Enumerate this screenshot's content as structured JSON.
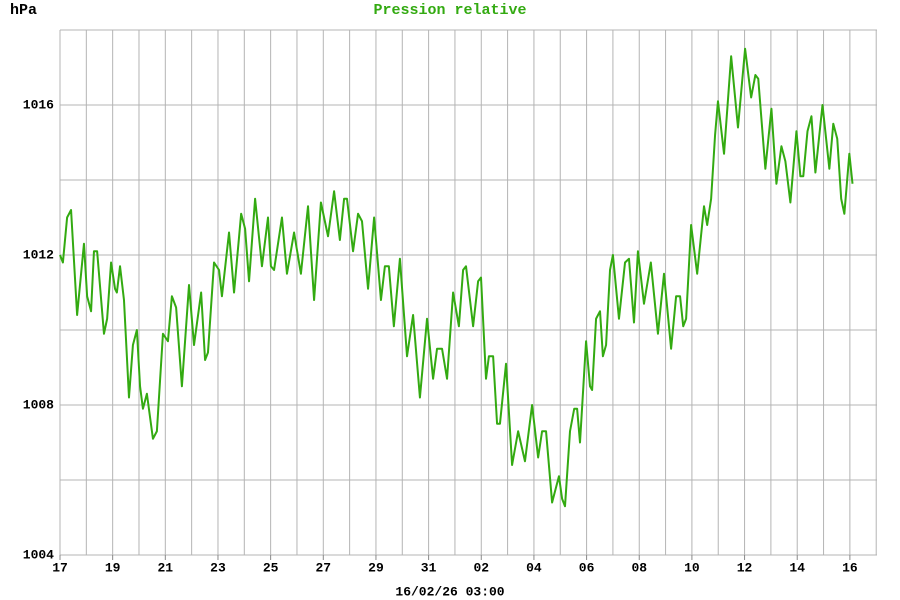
{
  "chart_data": {
    "type": "line",
    "title": "Pression relative",
    "y_label": "hPa",
    "x_label": "16/02/26 03:00",
    "color": "#33aa11",
    "ylim": [
      1004,
      1018
    ],
    "yticks": [
      1004,
      1008,
      1012,
      1016
    ],
    "ygrid": [
      1004,
      1006,
      1008,
      1010,
      1012,
      1014,
      1016,
      1018
    ],
    "xlim": [
      0,
      31.03
    ],
    "xticks": [
      {
        "value": 0,
        "label": "17"
      },
      {
        "value": 2,
        "label": "19"
      },
      {
        "value": 4,
        "label": "21"
      },
      {
        "value": 6,
        "label": "23"
      },
      {
        "value": 8,
        "label": "25"
      },
      {
        "value": 10,
        "label": "27"
      },
      {
        "value": 12,
        "label": "29"
      },
      {
        "value": 14,
        "label": "31"
      },
      {
        "value": 16,
        "label": "02"
      },
      {
        "value": 18,
        "label": "04"
      },
      {
        "value": 20,
        "label": "06"
      },
      {
        "value": 22,
        "label": "08"
      },
      {
        "value": 24,
        "label": "10"
      },
      {
        "value": 26,
        "label": "12"
      },
      {
        "value": 28,
        "label": "14"
      },
      {
        "value": 30,
        "label": "16"
      }
    ],
    "xgrid": [
      0,
      1,
      2,
      3,
      4,
      5,
      6,
      7,
      8,
      9,
      10,
      11,
      12,
      13,
      14,
      15,
      16,
      17,
      18,
      19,
      20,
      21,
      22,
      23,
      24,
      25,
      26,
      27,
      28,
      29,
      30,
      31
    ],
    "grid": true,
    "x": [
      0,
      0.11,
      0.27,
      0.42,
      0.65,
      0.91,
      1.03,
      1.18,
      1.29,
      1.41,
      1.67,
      1.79,
      1.94,
      2.09,
      2.16,
      2.28,
      2.43,
      2.62,
      2.77,
      2.92,
      3.04,
      3.15,
      3.3,
      3.53,
      3.68,
      3.91,
      4.1,
      4.25,
      4.41,
      4.63,
      4.9,
      5.09,
      5.36,
      5.51,
      5.62,
      5.85,
      6.04,
      6.15,
      6.42,
      6.61,
      6.88,
      7.03,
      7.18,
      7.41,
      7.67,
      7.9,
      8.01,
      8.13,
      8.43,
      8.62,
      8.89,
      9.15,
      9.42,
      9.65,
      9.91,
      10.18,
      10.41,
      10.63,
      10.79,
      10.9,
      11.13,
      11.32,
      11.47,
      11.7,
      11.93,
      12.19,
      12.34,
      12.49,
      12.68,
      12.91,
      13.18,
      13.41,
      13.67,
      13.94,
      14.17,
      14.32,
      14.51,
      14.7,
      14.93,
      15.15,
      15.31,
      15.42,
      15.69,
      15.88,
      15.99,
      16.18,
      16.29,
      16.45,
      16.6,
      16.71,
      16.94,
      17.17,
      17.4,
      17.66,
      17.93,
      18.16,
      18.31,
      18.46,
      18.69,
      18.95,
      19.07,
      19.18,
      19.37,
      19.53,
      19.64,
      19.75,
      19.98,
      20.13,
      20.21,
      20.36,
      20.51,
      20.62,
      20.74,
      20.89,
      21.0,
      21.23,
      21.46,
      21.61,
      21.8,
      21.95,
      22.18,
      22.44,
      22.71,
      22.94,
      23.21,
      23.4,
      23.55,
      23.67,
      23.78,
      23.97,
      24.2,
      24.46,
      24.58,
      24.73,
      24.88,
      24.99,
      25.22,
      25.49,
      25.75,
      26.02,
      26.25,
      26.41,
      26.52,
      26.79,
      27.02,
      27.21,
      27.4,
      27.55,
      27.74,
      27.97,
      28.12,
      28.23,
      28.39,
      28.54,
      28.69,
      28.96,
      29.22,
      29.37,
      29.52,
      29.67,
      29.79,
      29.98,
      30.1
    ],
    "values": [
      1012.0,
      1011.8,
      1013.0,
      1013.2,
      1010.4,
      1012.3,
      1010.9,
      1010.5,
      1012.1,
      1012.1,
      1009.9,
      1010.3,
      1011.8,
      1011.1,
      1011.0,
      1011.7,
      1010.8,
      1008.2,
      1009.6,
      1010.0,
      1008.5,
      1007.9,
      1008.3,
      1007.1,
      1007.3,
      1009.9,
      1009.7,
      1010.9,
      1010.6,
      1008.5,
      1011.2,
      1009.6,
      1011.0,
      1009.2,
      1009.4,
      1011.8,
      1011.6,
      1010.9,
      1012.6,
      1011.0,
      1013.1,
      1012.7,
      1011.3,
      1013.5,
      1011.7,
      1013.0,
      1011.7,
      1011.6,
      1013.0,
      1011.5,
      1012.6,
      1011.5,
      1013.3,
      1010.8,
      1013.4,
      1012.5,
      1013.7,
      1012.4,
      1013.5,
      1013.5,
      1012.1,
      1013.1,
      1012.9,
      1011.1,
      1013.0,
      1010.8,
      1011.7,
      1011.7,
      1010.1,
      1011.9,
      1009.3,
      1010.4,
      1008.2,
      1010.3,
      1008.7,
      1009.5,
      1009.5,
      1008.7,
      1011.0,
      1010.1,
      1011.6,
      1011.7,
      1010.1,
      1011.3,
      1011.4,
      1008.7,
      1009.3,
      1009.3,
      1007.5,
      1007.5,
      1009.1,
      1006.4,
      1007.3,
      1006.5,
      1008.0,
      1006.6,
      1007.3,
      1007.3,
      1005.4,
      1006.1,
      1005.5,
      1005.3,
      1007.3,
      1007.9,
      1007.9,
      1007.0,
      1009.7,
      1008.5,
      1008.4,
      1010.3,
      1010.5,
      1009.3,
      1009.6,
      1011.6,
      1012.0,
      1010.3,
      1011.8,
      1011.9,
      1010.2,
      1012.1,
      1010.7,
      1011.8,
      1009.9,
      1011.5,
      1009.5,
      1010.9,
      1010.9,
      1010.1,
      1010.3,
      1012.8,
      1011.5,
      1013.3,
      1012.8,
      1013.5,
      1015.2,
      1016.1,
      1014.7,
      1017.3,
      1015.4,
      1017.5,
      1016.2,
      1016.8,
      1016.7,
      1014.3,
      1015.9,
      1013.9,
      1014.9,
      1014.5,
      1013.4,
      1015.3,
      1014.1,
      1014.1,
      1015.3,
      1015.7,
      1014.2,
      1016.0,
      1014.3,
      1015.5,
      1015.1,
      1013.5,
      1013.1,
      1014.7,
      1013.9
    ]
  }
}
